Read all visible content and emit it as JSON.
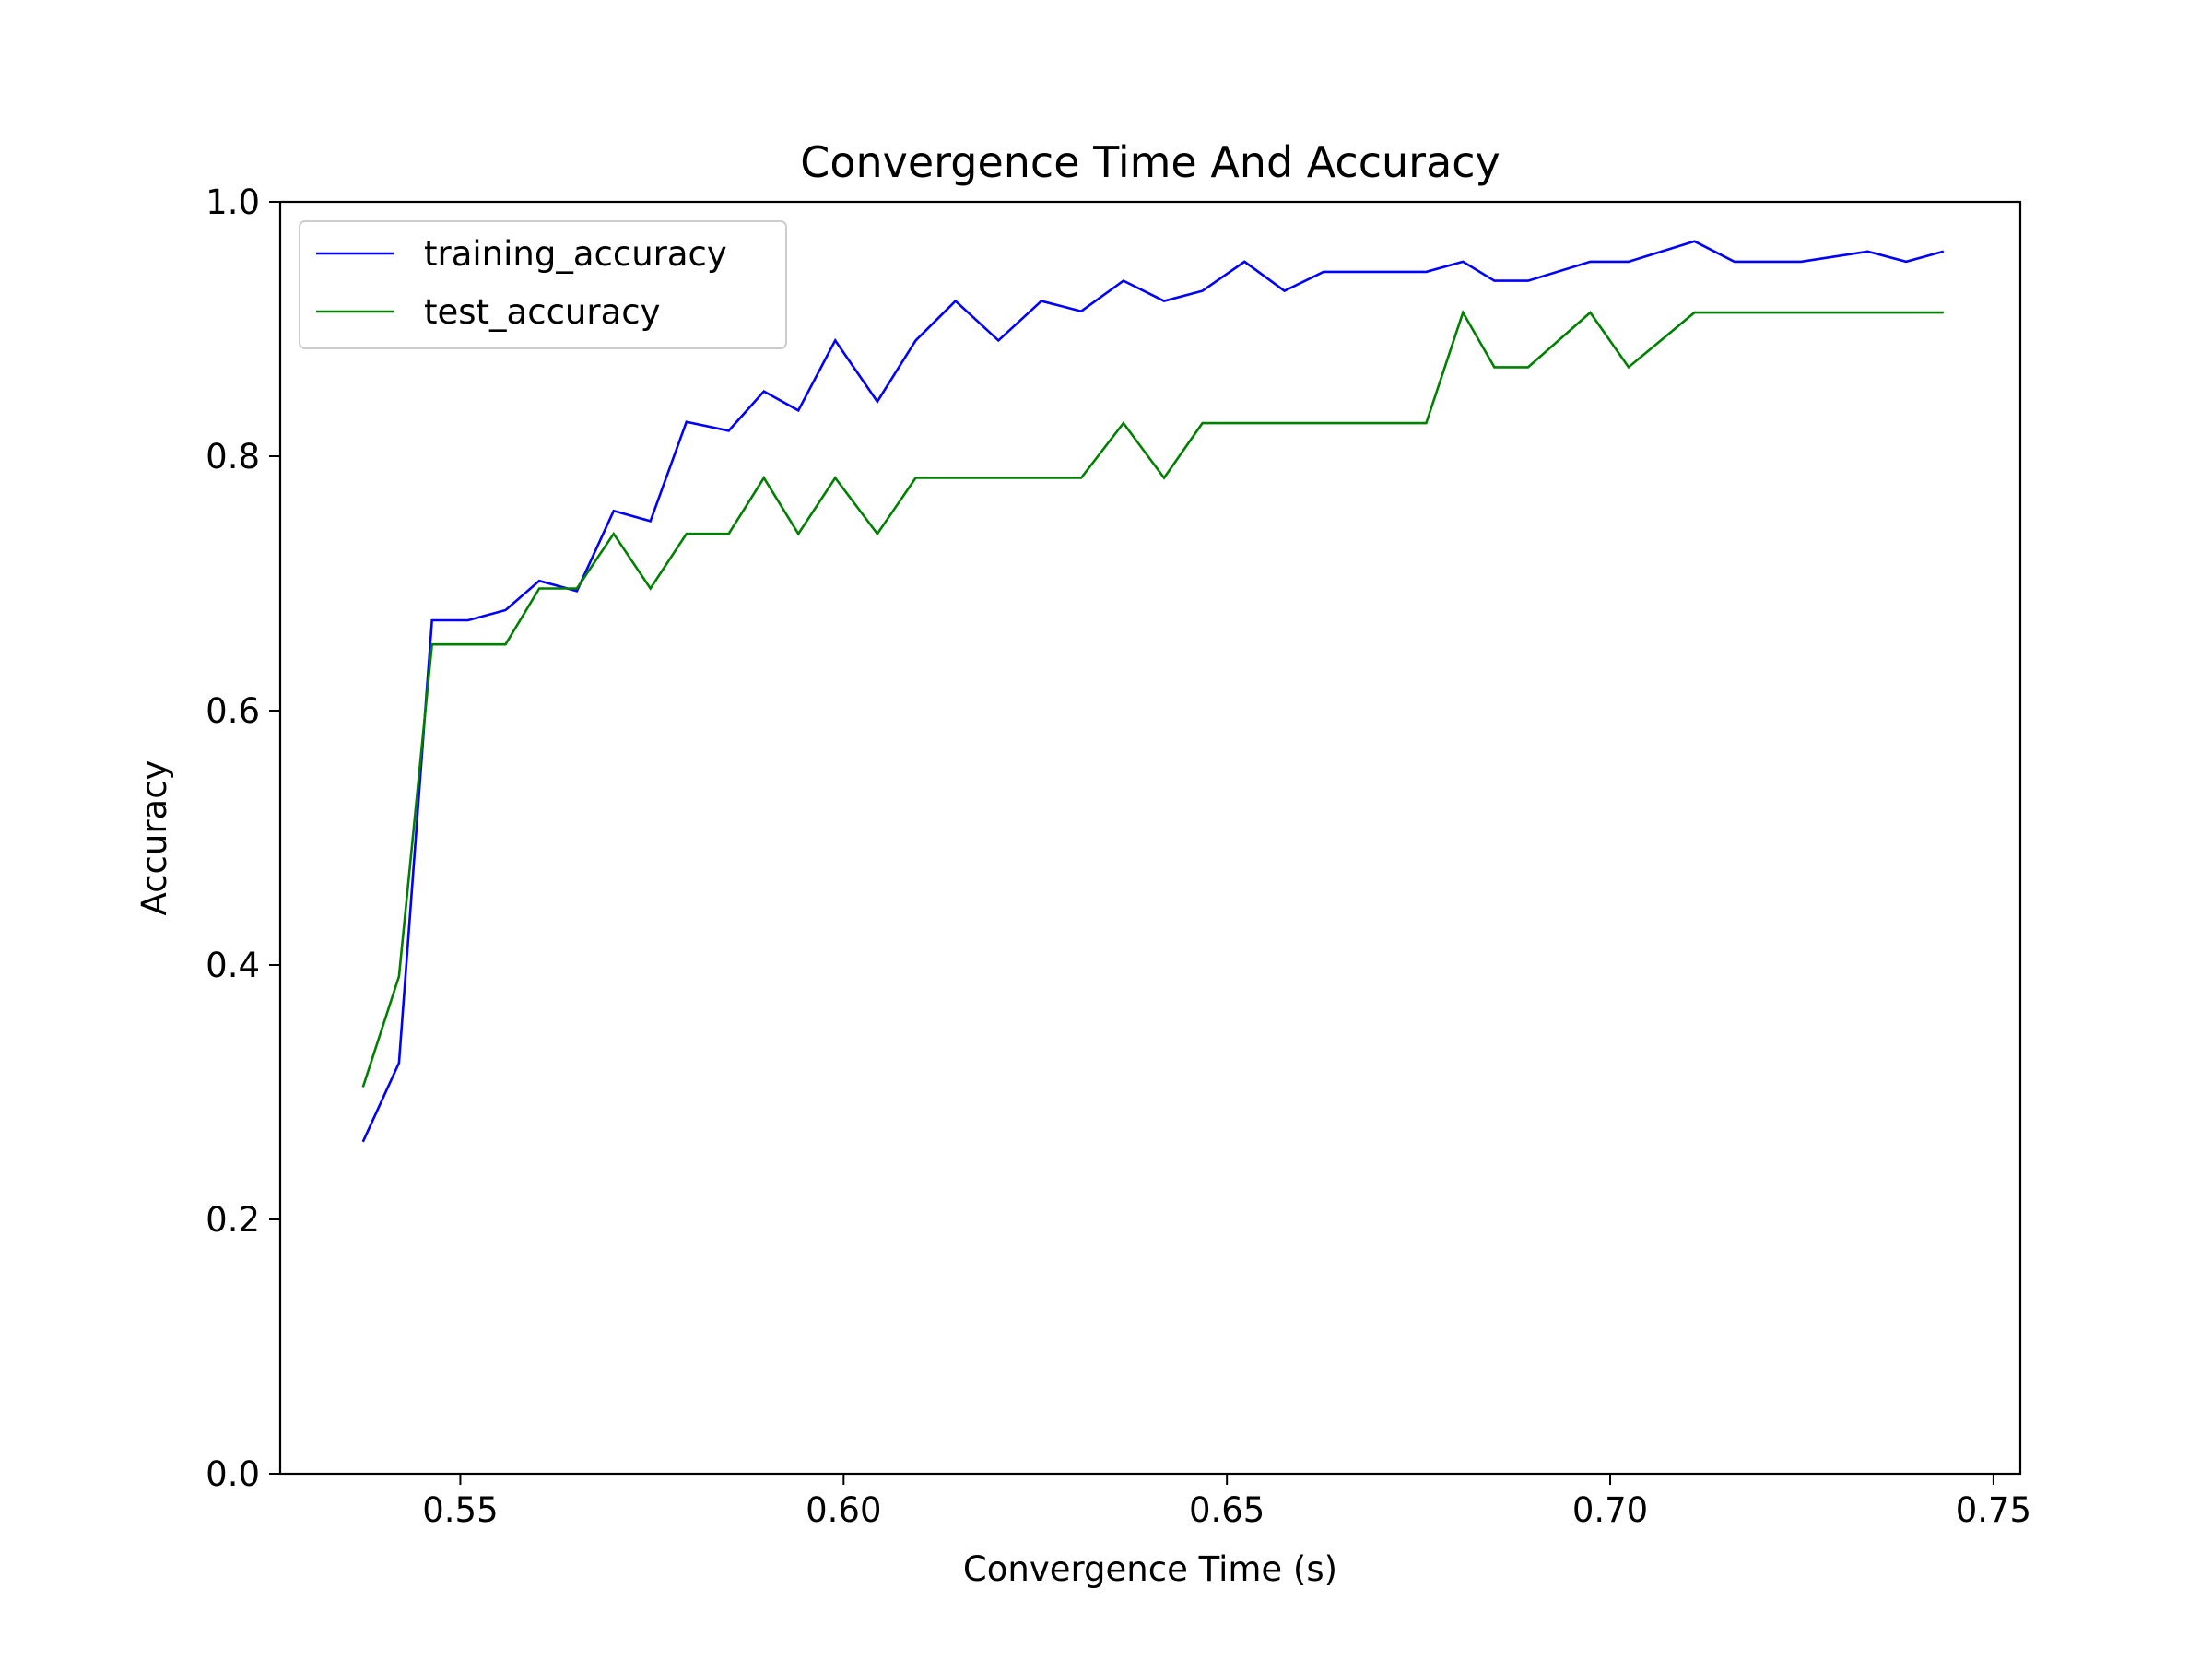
{
  "chart_data": {
    "type": "line",
    "title": "Convergence Time And Accuracy",
    "xlabel": "Convergence Time (s)",
    "ylabel": "Accuracy",
    "xlim": [
      0.5265,
      0.7535
    ],
    "ylim": [
      0.0,
      1.0
    ],
    "xticks": [
      "0.55",
      "0.60",
      "0.65",
      "0.70",
      "0.75"
    ],
    "xtick_values": [
      0.55,
      0.6,
      0.65,
      0.7,
      0.75
    ],
    "yticks": [
      "0.0",
      "0.2",
      "0.4",
      "0.6",
      "0.8",
      "1.0"
    ],
    "ytick_values": [
      0.0,
      0.2,
      0.4,
      0.6,
      0.8,
      1.0
    ],
    "grid": false,
    "legend_position": "top-left",
    "series": [
      {
        "name": "training_accuracy",
        "color": "#0000ff",
        "points": [
          [
            0.5373,
            0.261
          ],
          [
            0.542,
            0.323
          ],
          [
            0.5463,
            0.671
          ],
          [
            0.551,
            0.671
          ],
          [
            0.5559,
            0.679
          ],
          [
            0.5603,
            0.702
          ],
          [
            0.5652,
            0.694
          ],
          [
            0.57,
            0.757
          ],
          [
            0.5748,
            0.749
          ],
          [
            0.5795,
            0.827
          ],
          [
            0.585,
            0.82
          ],
          [
            0.5896,
            0.851
          ],
          [
            0.5941,
            0.836
          ],
          [
            0.5989,
            0.891
          ],
          [
            0.6044,
            0.843
          ],
          [
            0.6094,
            0.891
          ],
          [
            0.6146,
            0.922
          ],
          [
            0.6202,
            0.891
          ],
          [
            0.6258,
            0.922
          ],
          [
            0.631,
            0.914
          ],
          [
            0.6365,
            0.938
          ],
          [
            0.6418,
            0.922
          ],
          [
            0.6468,
            0.93
          ],
          [
            0.6523,
            0.953
          ],
          [
            0.6575,
            0.93
          ],
          [
            0.6626,
            0.945
          ],
          [
            0.6677,
            0.945
          ],
          [
            0.6728,
            0.945
          ],
          [
            0.676,
            0.945
          ],
          [
            0.6808,
            0.953
          ],
          [
            0.6849,
            0.938
          ],
          [
            0.6893,
            0.938
          ],
          [
            0.6974,
            0.953
          ],
          [
            0.7024,
            0.953
          ],
          [
            0.711,
            0.969
          ],
          [
            0.7162,
            0.953
          ],
          [
            0.7249,
            0.953
          ],
          [
            0.7336,
            0.961
          ],
          [
            0.7386,
            0.953
          ],
          [
            0.7435,
            0.961
          ]
        ]
      },
      {
        "name": "test_accuracy",
        "color": "#008000",
        "points": [
          [
            0.5373,
            0.304
          ],
          [
            0.542,
            0.391
          ],
          [
            0.5463,
            0.652
          ],
          [
            0.551,
            0.652
          ],
          [
            0.5559,
            0.652
          ],
          [
            0.5603,
            0.696
          ],
          [
            0.5652,
            0.696
          ],
          [
            0.57,
            0.739
          ],
          [
            0.5748,
            0.696
          ],
          [
            0.5795,
            0.739
          ],
          [
            0.585,
            0.739
          ],
          [
            0.5896,
            0.783
          ],
          [
            0.5941,
            0.739
          ],
          [
            0.5989,
            0.783
          ],
          [
            0.6044,
            0.739
          ],
          [
            0.6094,
            0.783
          ],
          [
            0.6146,
            0.783
          ],
          [
            0.6202,
            0.783
          ],
          [
            0.6258,
            0.783
          ],
          [
            0.631,
            0.783
          ],
          [
            0.6365,
            0.826
          ],
          [
            0.6418,
            0.783
          ],
          [
            0.6468,
            0.826
          ],
          [
            0.6523,
            0.826
          ],
          [
            0.6575,
            0.826
          ],
          [
            0.6626,
            0.826
          ],
          [
            0.6677,
            0.826
          ],
          [
            0.6728,
            0.826
          ],
          [
            0.676,
            0.826
          ],
          [
            0.6808,
            0.913
          ],
          [
            0.6849,
            0.87
          ],
          [
            0.6893,
            0.87
          ],
          [
            0.6974,
            0.913
          ],
          [
            0.7024,
            0.87
          ],
          [
            0.711,
            0.913
          ],
          [
            0.7162,
            0.913
          ],
          [
            0.7249,
            0.913
          ],
          [
            0.7336,
            0.913
          ],
          [
            0.7386,
            0.913
          ],
          [
            0.7435,
            0.913
          ]
        ]
      }
    ]
  }
}
